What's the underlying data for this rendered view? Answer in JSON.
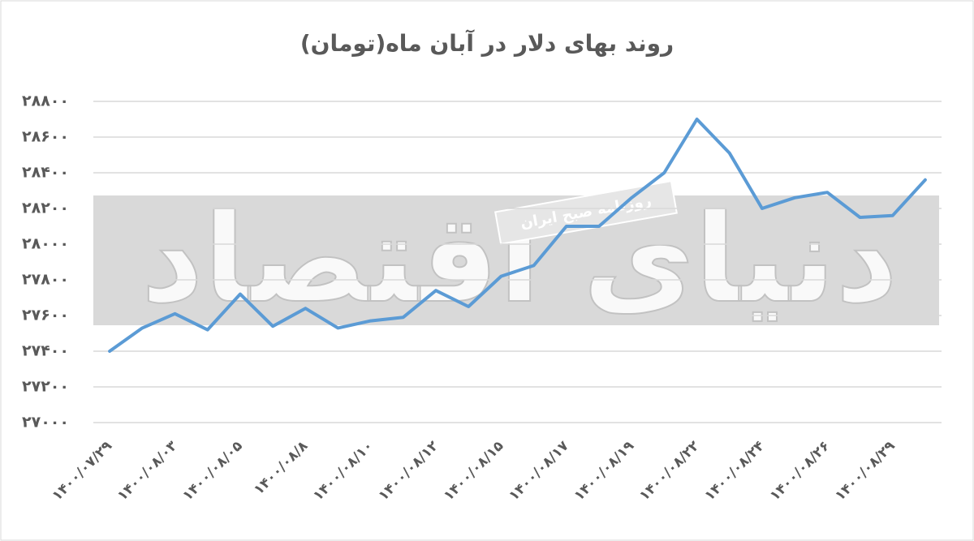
{
  "chart_data": {
    "type": "line",
    "title": "روند بهای دلار در آبان ماه(تومان)",
    "watermarks": [
      "دنیای اقتصاد",
      "روزنامه صبح ایران"
    ],
    "categories": [
      "۱۴۰۰/۰۷/۲۹",
      null,
      "۱۴۰۰/۰۸/۰۳",
      null,
      "۱۴۰۰/۰۸/۰۵",
      null,
      "۱۴۰۰/۰۸/۸",
      null,
      "۱۴۰۰/۰۸/۱۰",
      null,
      "۱۴۰۰/۰۸/۱۲",
      null,
      "۱۴۰۰/۰۸/۱۵",
      null,
      "۱۴۰۰/۰۸/۱۷",
      null,
      "۱۴۰۰/۰۸/۱۹",
      null,
      "۱۴۰۰/۰۸/۲۲",
      null,
      "۱۴۰۰/۰۸/۲۴",
      null,
      "۱۴۰۰/۰۸/۲۶",
      null,
      "۱۴۰۰/۰۸/۲۹",
      null
    ],
    "values": [
      27400,
      27530,
      27610,
      27520,
      27720,
      27540,
      27640,
      27530,
      27570,
      27590,
      27740,
      27650,
      27820,
      27880,
      28100,
      28100,
      28260,
      28400,
      28700,
      28510,
      28200,
      28260,
      28290,
      28150,
      28160,
      28360
    ],
    "color": "#5b9bd5",
    "ylim": [
      27000,
      28800
    ],
    "yticks": [
      {
        "value": 27000,
        "label": "۲۷۰۰۰"
      },
      {
        "value": 27200,
        "label": "۲۷۲۰۰"
      },
      {
        "value": 27400,
        "label": "۲۷۴۰۰"
      },
      {
        "value": 27600,
        "label": "۲۷۶۰۰"
      },
      {
        "value": 27800,
        "label": "۲۷۸۰۰"
      },
      {
        "value": 28000,
        "label": "۲۸۰۰۰"
      },
      {
        "value": 28200,
        "label": "۲۸۲۰۰"
      },
      {
        "value": 28400,
        "label": "۲۸۴۰۰"
      },
      {
        "value": 28600,
        "label": "۲۸۶۰۰"
      },
      {
        "value": 28800,
        "label": "۲۸۸۰۰"
      }
    ],
    "grid": true
  }
}
